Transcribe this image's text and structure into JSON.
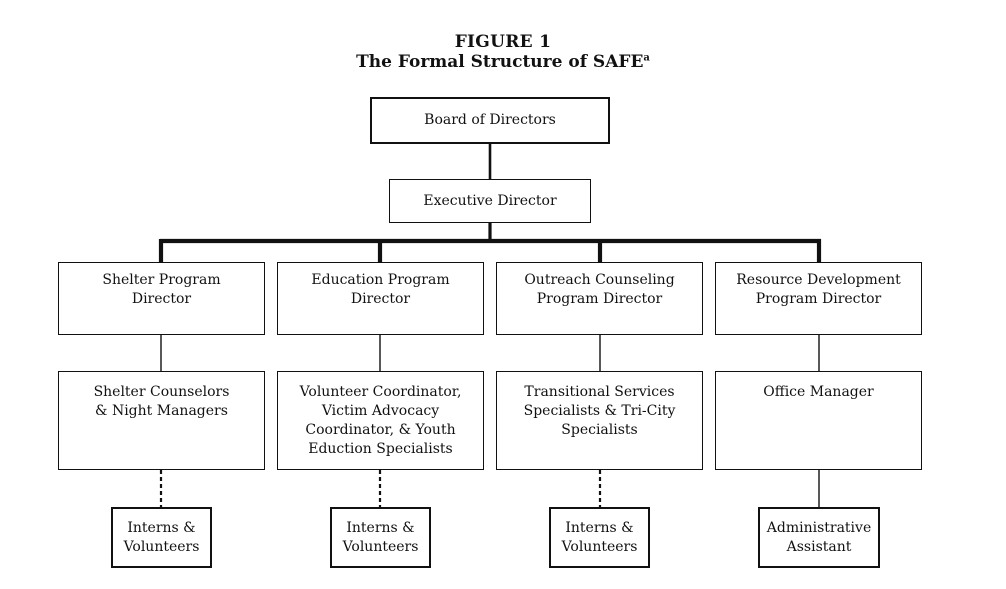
{
  "figure": {
    "title_line1": "FIGURE 1",
    "title_line2": "The Formal Structure of SAFE",
    "title_superscript": "a"
  },
  "org_chart": {
    "board": "Board of Directors",
    "executive": "Executive Director",
    "programs": [
      {
        "director": "Shelter Program\nDirector",
        "staff": "Shelter Counselors\n& Night Managers",
        "support": "Interns &\nVolunteers",
        "support_link": "dashed"
      },
      {
        "director": "Education Program\nDirector",
        "staff": "Volunteer Coordinator,\nVictim Advocacy\nCoordinator, & Youth\nEduction Specialists",
        "support": "Interns &\nVolunteers",
        "support_link": "dashed"
      },
      {
        "director": "Outreach Counseling\nProgram Director",
        "staff": "Transitional Services\nSpecialists & Tri-City\nSpecialists",
        "support": "Interns &\nVolunteers",
        "support_link": "dashed"
      },
      {
        "director": "Resource Development\nProgram Director",
        "staff": "Office Manager",
        "support": "Administrative\nAssistant",
        "support_link": "solid"
      }
    ]
  }
}
